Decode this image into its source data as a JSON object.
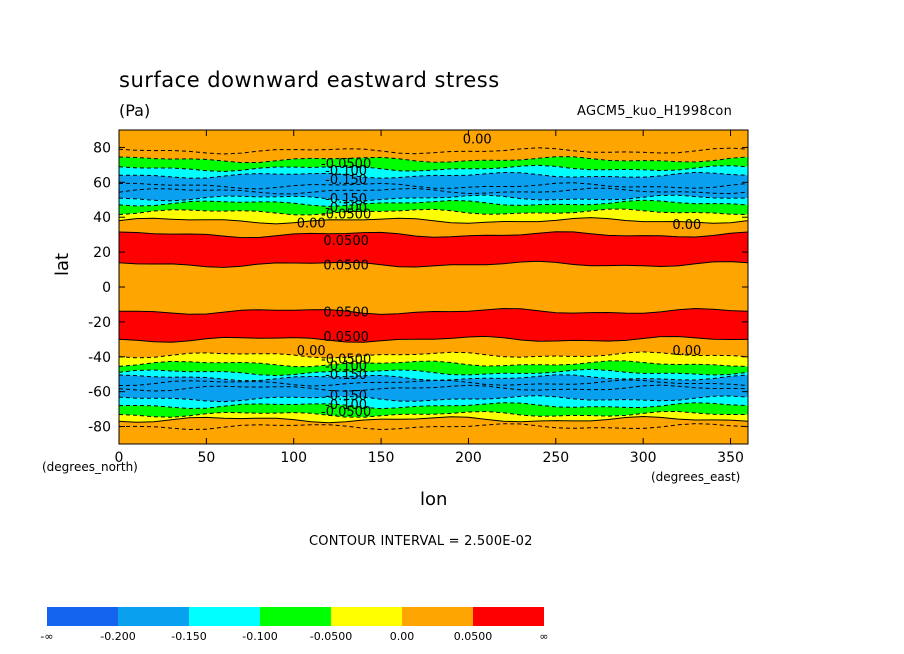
{
  "chart_data": {
    "type": "contour",
    "title": "surface downward eastward stress",
    "units": "(Pa)",
    "model_label": "AGCM5_kuo_H1998con",
    "xlabel": "lon",
    "ylabel": "lat",
    "x_unit_label": "(degrees_east)",
    "y_unit_label": "(degrees_north)",
    "xlim": [
      0,
      360
    ],
    "ylim": [
      -90,
      90
    ],
    "xticks": [
      0,
      50,
      100,
      150,
      200,
      250,
      300,
      350
    ],
    "yticks": [
      -80,
      -60,
      -40,
      -20,
      0,
      20,
      40,
      60,
      80
    ],
    "xtick_labels": [
      "0",
      "50",
      "100",
      "150",
      "200",
      "250",
      "300",
      "350"
    ],
    "ytick_labels": [
      "-80",
      "-60",
      "-40",
      "-20",
      "0",
      "20",
      "40",
      "60",
      "80"
    ],
    "contour_interval_text": "CONTOUR INTERVAL = 2.500E-02",
    "colorbar": {
      "colors": [
        "#1464f0",
        "#0aa0f0",
        "#00ffff",
        "#00ff00",
        "#ffff00",
        "#ffa500",
        "#ff0000"
      ],
      "labels": [
        "-∞",
        "-0.200",
        "-0.150",
        "-0.100",
        "-0.0500",
        "0.00",
        "0.0500",
        "∞"
      ]
    },
    "bands": [
      {
        "lat_from": 90,
        "lat_to": 73,
        "level": "0.00 to 0.0500"
      },
      {
        "lat_from": 73,
        "lat_to": 68,
        "level": "-0.100 to -0.0500"
      },
      {
        "lat_from": 68,
        "lat_to": 64,
        "level": "-0.150 to -0.100"
      },
      {
        "lat_from": 64,
        "lat_to": 51,
        "level": "-0.200 to -0.150"
      },
      {
        "lat_from": 51,
        "lat_to": 48,
        "level": "-0.150 to -0.100"
      },
      {
        "lat_from": 48,
        "lat_to": 43,
        "level": "-0.100 to -0.0500"
      },
      {
        "lat_from": 43,
        "lat_to": 38,
        "level": "-0.0500 to 0.00"
      },
      {
        "lat_from": 38,
        "lat_to": 30,
        "level": "0.00 to 0.0500"
      },
      {
        "lat_from": 30,
        "lat_to": 13,
        "level": "0.0500 to inf"
      },
      {
        "lat_from": 13,
        "lat_to": -14,
        "level": "0.00 to 0.0500"
      },
      {
        "lat_from": -14,
        "lat_to": -30,
        "level": "0.0500 to inf"
      },
      {
        "lat_from": -30,
        "lat_to": -39,
        "level": "0.00 to 0.0500"
      },
      {
        "lat_from": -39,
        "lat_to": -44,
        "level": "-0.0500 to 0.00"
      },
      {
        "lat_from": -44,
        "lat_to": -49,
        "level": "-0.100 to -0.0500"
      },
      {
        "lat_from": -49,
        "lat_to": -52,
        "level": "-0.150 to -0.100"
      },
      {
        "lat_from": -52,
        "lat_to": -64,
        "level": "-0.200 to -0.150"
      },
      {
        "lat_from": -64,
        "lat_to": -68,
        "level": "-0.150 to -0.100"
      },
      {
        "lat_from": -68,
        "lat_to": -73,
        "level": "-0.100 to -0.0500"
      },
      {
        "lat_from": -73,
        "lat_to": -76,
        "level": "-0.0500 to 0.00"
      },
      {
        "lat_from": -76,
        "lat_to": -90,
        "level": "0.00 to 0.0500"
      }
    ],
    "contour_labels": [
      {
        "text": "0.00",
        "lon": 205,
        "lat": 85
      },
      {
        "text": "-0.0500",
        "lon": 130,
        "lat": 71
      },
      {
        "text": "-0.100",
        "lon": 130,
        "lat": 67
      },
      {
        "text": "-0.150",
        "lon": 130,
        "lat": 62
      },
      {
        "text": "-0.150",
        "lon": 130,
        "lat": 51
      },
      {
        "text": "-0.100",
        "lon": 130,
        "lat": 46
      },
      {
        "text": "-0.0500",
        "lon": 130,
        "lat": 42
      },
      {
        "text": "0.00",
        "lon": 110,
        "lat": 37
      },
      {
        "text": "0.00",
        "lon": 325,
        "lat": 36
      },
      {
        "text": "0.0500",
        "lon": 130,
        "lat": 27
      },
      {
        "text": "0.0500",
        "lon": 130,
        "lat": 13
      },
      {
        "text": "0.0500",
        "lon": 130,
        "lat": -14
      },
      {
        "text": "0.0500",
        "lon": 130,
        "lat": -28
      },
      {
        "text": "0.00",
        "lon": 110,
        "lat": -36
      },
      {
        "text": "0.00",
        "lon": 325,
        "lat": -36
      },
      {
        "text": "-0.0500",
        "lon": 130,
        "lat": -41
      },
      {
        "text": "-0.100",
        "lon": 130,
        "lat": -45
      },
      {
        "text": "-0.150",
        "lon": 130,
        "lat": -50
      },
      {
        "text": "-0.150",
        "lon": 130,
        "lat": -62
      },
      {
        "text": "-0.100",
        "lon": 130,
        "lat": -67
      },
      {
        "text": "-0.0500",
        "lon": 130,
        "lat": -71
      }
    ]
  }
}
